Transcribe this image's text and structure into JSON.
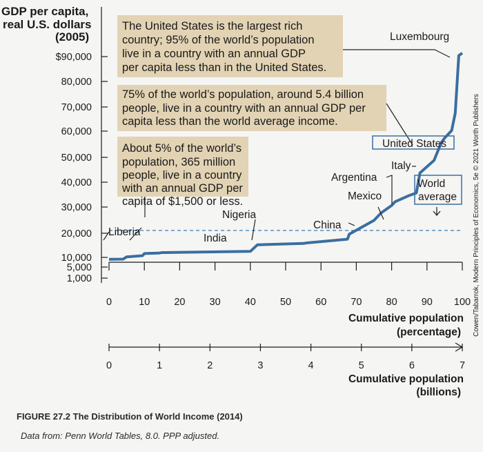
{
  "chart_data": {
    "type": "line",
    "ylabel": [
      "GDP per capita,",
      "real U.S. dollars",
      "(2005)"
    ],
    "y_ticks": [
      "$90,000",
      "80,000",
      "70,000",
      "60,000",
      "50,000",
      "40,000",
      "30,000",
      "20,000",
      "10,000",
      "5,000",
      "1,000"
    ],
    "x_ticks": [
      "0",
      "10",
      "20",
      "30",
      "40",
      "50",
      "60",
      "70",
      "80",
      "90",
      "100"
    ],
    "xlabel": [
      "Cumulative population",
      "(percentage)"
    ],
    "x2_ticks": [
      "0",
      "1",
      "2",
      "3",
      "4",
      "5",
      "6",
      "7"
    ],
    "x2label": [
      "Cumulative population",
      "(billions)"
    ],
    "xlim": [
      0,
      100
    ],
    "ylim": [
      0,
      90000
    ],
    "series": [
      {
        "x": [
          0,
          4,
          5,
          9.5,
          10,
          14,
          15,
          16,
          40,
          42,
          55,
          56,
          67.5,
          68,
          75,
          77,
          80,
          81,
          85,
          87,
          88,
          92,
          94,
          95,
          97,
          98,
          99,
          100
        ],
        "y": [
          1500,
          1600,
          2800,
          3400,
          4500,
          4700,
          5000,
          5000,
          5600,
          9000,
          9700,
          10000,
          11500,
          13500,
          19000,
          22000,
          25000,
          26500,
          29000,
          30000,
          38000,
          43000,
          50000,
          52000,
          55000,
          62000,
          85000,
          86000
        ]
      }
    ],
    "world_average": 15000,
    "annotations": {
      "box1": [
        "The United States is the largest rich",
        "country; 95% of the world’s population",
        "live in a country with an annual GDP",
        "per capita less than in the United States."
      ],
      "box2": [
        "75% of the world’s population, around 5.4 billion",
        "people, live in a country with an annual GDP per",
        "capita less than the world average income."
      ],
      "box3": [
        "About 5% of the world’s",
        "population, 365 million",
        "people, live in a country",
        "with an annual GDP per",
        "capita of $1,500 or less."
      ]
    },
    "point_labels": [
      "Luxembourg",
      "United States",
      "Italy",
      "Argentina",
      "Mexico",
      "China",
      "Nigeria",
      "India",
      "Liberia"
    ],
    "world_label": [
      "World",
      "average"
    ],
    "caption": "FIGURE 27.2 The Distribution of World Income (2014)",
    "source": "Data from: Penn World Tables, 8.0. PPP adjusted.",
    "side_credit": "Cowen/Tabarrok, Modern Principles of Economics, 5e © 2021 Worth Publishers"
  }
}
